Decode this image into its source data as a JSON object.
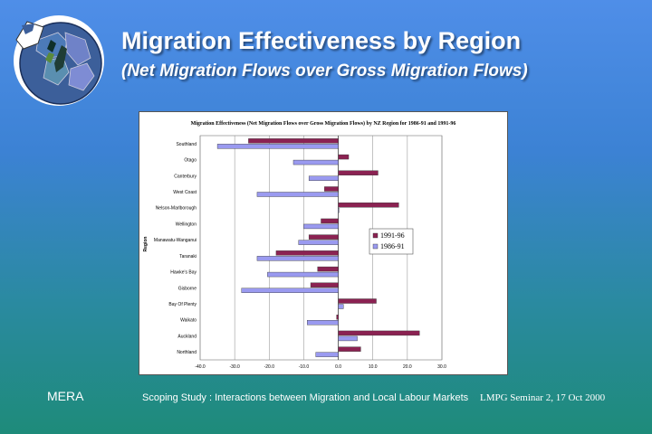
{
  "slide": {
    "title": "Migration Effectiveness by Region",
    "subtitle": "(Net Migration Flows over Gross Migration Flows)",
    "footer_left": "MERA",
    "footer_center": "Scoping Study : Interactions between Migration and Local Labour Markets",
    "footer_right": "LMPG Seminar 2, 17 Oct 2000",
    "logo_icon": "nz-map-globe-icon"
  },
  "colors": {
    "series_1991_96": "#8b2252",
    "series_1986_91": "#9a9af0"
  },
  "chart_data": {
    "type": "bar",
    "orientation": "horizontal",
    "title": "Migration Effectiveness (Net Migration Flows over Gross Migration Flows) by NZ Region for 1986-91 and 1991-96",
    "xlabel": "",
    "ylabel": "Region",
    "xlim": [
      -40,
      30
    ],
    "xticks": [
      "-40.0",
      "-30.0",
      "-20.0",
      "-10.0",
      "0.0",
      "10.0",
      "20.0",
      "30.0"
    ],
    "grid": true,
    "legend_position": "right",
    "categories": [
      "Southland",
      "Otago",
      "Canterbury",
      "West Coast",
      "Nelson-Marlborough",
      "Wellington",
      "Manawatu-Wanganui",
      "Taranaki",
      "Hawke's Bay",
      "Gisborne",
      "Bay Of Plenty",
      "Waikato",
      "Auckland",
      "Northland"
    ],
    "series": [
      {
        "name": "1991-96",
        "values": [
          -26,
          3,
          11.5,
          -4,
          17.5,
          -5,
          -8.5,
          -18,
          -6,
          -8,
          11,
          -0.5,
          23.5,
          6.5
        ]
      },
      {
        "name": "1986-91",
        "values": [
          -35,
          -13,
          -8.5,
          -23.5,
          0,
          -10,
          -11.5,
          -23.5,
          -20.5,
          -28,
          1.5,
          -9,
          5.5,
          -6.5
        ]
      }
    ]
  }
}
